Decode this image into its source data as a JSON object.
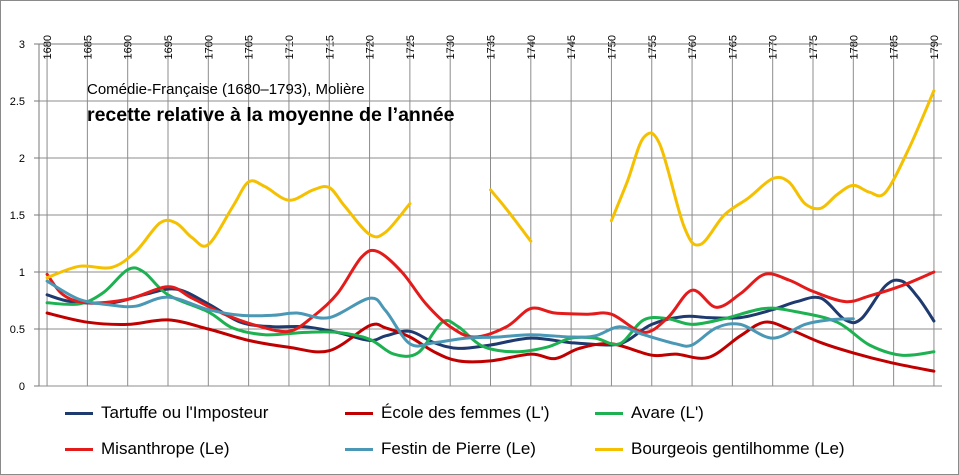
{
  "chart_data": {
    "type": "line",
    "title": "Comédie-Française (1680–1793), Molière",
    "subtitle": "recette relative à la moyenne de l’année",
    "xlabel": "",
    "ylabel": "",
    "xlim": [
      1679,
      1791
    ],
    "ylim": [
      0,
      3
    ],
    "x_tick_labels": [
      "1680",
      "1685",
      "1690",
      "1695",
      "1700",
      "1705",
      "1710",
      "1715",
      "1720",
      "1725",
      "1730",
      "1735",
      "1740",
      "1745",
      "1750",
      "1755",
      "1760",
      "1765",
      "1770",
      "1775",
      "1780",
      "1785",
      "1790"
    ],
    "y_tick_labels": [
      "0",
      "0.5",
      "1",
      "1.5",
      "2",
      "2.5",
      "3"
    ],
    "grid": true,
    "x_axis_position": "top",
    "legend_position": "bottom",
    "series": [
      {
        "name": "Tartuffe ou l'Imposteur",
        "color": "#1f3a6e",
        "points": [
          [
            1680,
            0.8
          ],
          [
            1683,
            0.74
          ],
          [
            1688,
            0.73
          ],
          [
            1692,
            0.8
          ],
          [
            1696,
            0.85
          ],
          [
            1700,
            0.72
          ],
          [
            1704,
            0.56
          ],
          [
            1708,
            0.52
          ],
          [
            1712,
            0.52
          ],
          [
            1716,
            0.47
          ],
          [
            1720,
            0.4
          ],
          [
            1722,
            0.44
          ],
          [
            1725,
            0.48
          ],
          [
            1728,
            0.38
          ],
          [
            1731,
            0.33
          ],
          [
            1735,
            0.36
          ],
          [
            1740,
            0.42
          ],
          [
            1745,
            0.38
          ],
          [
            1750,
            0.36
          ],
          [
            1752,
            0.4
          ],
          [
            1755,
            0.54
          ],
          [
            1759,
            0.61
          ],
          [
            1762,
            0.6
          ],
          [
            1766,
            0.6
          ],
          [
            1770,
            0.67
          ],
          [
            1773,
            0.74
          ],
          [
            1776,
            0.77
          ],
          [
            1779,
            0.58
          ],
          [
            1781,
            0.59
          ],
          [
            1784,
            0.88
          ],
          [
            1786,
            0.92
          ],
          [
            1788,
            0.78
          ],
          [
            1790,
            0.57
          ]
        ]
      },
      {
        "name": "École des femmes (L')",
        "color": "#c00000",
        "points": [
          [
            1680,
            0.64
          ],
          [
            1685,
            0.56
          ],
          [
            1690,
            0.54
          ],
          [
            1695,
            0.58
          ],
          [
            1700,
            0.5
          ],
          [
            1705,
            0.4
          ],
          [
            1710,
            0.34
          ],
          [
            1715,
            0.31
          ],
          [
            1720,
            0.53
          ],
          [
            1722,
            0.51
          ],
          [
            1725,
            0.43
          ],
          [
            1728,
            0.3
          ],
          [
            1731,
            0.22
          ],
          [
            1735,
            0.22
          ],
          [
            1740,
            0.28
          ],
          [
            1743,
            0.24
          ],
          [
            1746,
            0.33
          ],
          [
            1750,
            0.37
          ],
          [
            1755,
            0.27
          ],
          [
            1758,
            0.28
          ],
          [
            1762,
            0.25
          ],
          [
            1766,
            0.44
          ],
          [
            1769,
            0.56
          ],
          [
            1772,
            0.5
          ],
          [
            1776,
            0.38
          ],
          [
            1780,
            0.29
          ],
          [
            1785,
            0.2
          ],
          [
            1790,
            0.13
          ]
        ]
      },
      {
        "name": "Avare (L')",
        "color": "#1db152",
        "points": [
          [
            1680,
            0.73
          ],
          [
            1684,
            0.72
          ],
          [
            1687,
            0.82
          ],
          [
            1690,
            1.02
          ],
          [
            1692,
            1.0
          ],
          [
            1695,
            0.8
          ],
          [
            1700,
            0.65
          ],
          [
            1703,
            0.51
          ],
          [
            1707,
            0.45
          ],
          [
            1712,
            0.47
          ],
          [
            1716,
            0.47
          ],
          [
            1720,
            0.41
          ],
          [
            1723,
            0.28
          ],
          [
            1726,
            0.29
          ],
          [
            1729,
            0.56
          ],
          [
            1731,
            0.52
          ],
          [
            1734,
            0.35
          ],
          [
            1738,
            0.3
          ],
          [
            1742,
            0.34
          ],
          [
            1745,
            0.42
          ],
          [
            1748,
            0.42
          ],
          [
            1751,
            0.37
          ],
          [
            1754,
            0.58
          ],
          [
            1757,
            0.59
          ],
          [
            1760,
            0.54
          ],
          [
            1764,
            0.59
          ],
          [
            1769,
            0.68
          ],
          [
            1773,
            0.65
          ],
          [
            1778,
            0.56
          ],
          [
            1782,
            0.36
          ],
          [
            1786,
            0.27
          ],
          [
            1790,
            0.3
          ]
        ]
      },
      {
        "name": "Misanthrope (Le)",
        "color": "#e31b1b",
        "points": [
          [
            1680,
            0.98
          ],
          [
            1682,
            0.8
          ],
          [
            1685,
            0.73
          ],
          [
            1690,
            0.76
          ],
          [
            1695,
            0.87
          ],
          [
            1698,
            0.77
          ],
          [
            1702,
            0.63
          ],
          [
            1706,
            0.53
          ],
          [
            1710,
            0.48
          ],
          [
            1713,
            0.61
          ],
          [
            1716,
            0.81
          ],
          [
            1719,
            1.13
          ],
          [
            1721,
            1.18
          ],
          [
            1724,
            1.0
          ],
          [
            1727,
            0.72
          ],
          [
            1730,
            0.52
          ],
          [
            1733,
            0.43
          ],
          [
            1737,
            0.52
          ],
          [
            1740,
            0.68
          ],
          [
            1743,
            0.64
          ],
          [
            1747,
            0.63
          ],
          [
            1750,
            0.63
          ],
          [
            1754,
            0.47
          ],
          [
            1757,
            0.6
          ],
          [
            1760,
            0.84
          ],
          [
            1763,
            0.69
          ],
          [
            1766,
            0.81
          ],
          [
            1769,
            0.98
          ],
          [
            1772,
            0.93
          ],
          [
            1775,
            0.83
          ],
          [
            1779,
            0.74
          ],
          [
            1782,
            0.79
          ],
          [
            1786,
            0.88
          ],
          [
            1790,
            1.0
          ]
        ]
      },
      {
        "name": "Festin de Pierre (Le)",
        "color": "#4a98b5",
        "points": [
          [
            1680,
            0.92
          ],
          [
            1684,
            0.76
          ],
          [
            1688,
            0.71
          ],
          [
            1691,
            0.7
          ],
          [
            1695,
            0.78
          ],
          [
            1700,
            0.67
          ],
          [
            1704,
            0.62
          ],
          [
            1708,
            0.62
          ],
          [
            1711,
            0.64
          ],
          [
            1715,
            0.6
          ],
          [
            1720,
            0.77
          ],
          [
            1722,
            0.66
          ],
          [
            1725,
            0.37
          ],
          [
            1728,
            0.38
          ],
          [
            1732,
            0.42
          ],
          [
            1736,
            0.43
          ],
          [
            1740,
            0.45
          ],
          [
            1745,
            0.43
          ],
          [
            1748,
            0.44
          ],
          [
            1751,
            0.52
          ],
          [
            1754,
            0.45
          ],
          [
            1758,
            0.37
          ],
          [
            1760,
            0.36
          ],
          [
            1763,
            0.51
          ],
          [
            1766,
            0.54
          ],
          [
            1770,
            0.42
          ],
          [
            1774,
            0.54
          ],
          [
            1777,
            0.58
          ],
          [
            1780,
            0.59
          ]
        ]
      },
      {
        "name": "Bourgeois gentilhomme (Le)",
        "color": "#f5c000",
        "segments": [
          [
            [
              1680,
              0.95
            ],
            [
              1684,
              1.05
            ],
            [
              1688,
              1.04
            ],
            [
              1691,
              1.18
            ],
            [
              1694,
              1.43
            ],
            [
              1696,
              1.43
            ],
            [
              1698,
              1.3
            ],
            [
              1700,
              1.24
            ],
            [
              1703,
              1.57
            ],
            [
              1705,
              1.79
            ],
            [
              1707,
              1.75
            ],
            [
              1710,
              1.63
            ],
            [
              1713,
              1.72
            ],
            [
              1715,
              1.74
            ],
            [
              1717,
              1.57
            ],
            [
              1720,
              1.33
            ],
            [
              1722,
              1.35
            ],
            [
              1725,
              1.6
            ]
          ],
          [
            [
              1735,
              1.72
            ],
            [
              1737,
              1.55
            ],
            [
              1740,
              1.27
            ]
          ],
          [
            [
              1750,
              1.45
            ],
            [
              1752,
              1.8
            ],
            [
              1754,
              2.18
            ],
            [
              1756,
              2.12
            ],
            [
              1759,
              1.4
            ],
            [
              1761,
              1.24
            ],
            [
              1764,
              1.5
            ],
            [
              1767,
              1.65
            ],
            [
              1770,
              1.82
            ],
            [
              1772,
              1.79
            ],
            [
              1774,
              1.6
            ],
            [
              1776,
              1.56
            ],
            [
              1778,
              1.68
            ],
            [
              1780,
              1.76
            ],
            [
              1782,
              1.7
            ],
            [
              1784,
              1.7
            ],
            [
              1787,
              2.1
            ],
            [
              1790,
              2.59
            ]
          ]
        ]
      }
    ]
  }
}
